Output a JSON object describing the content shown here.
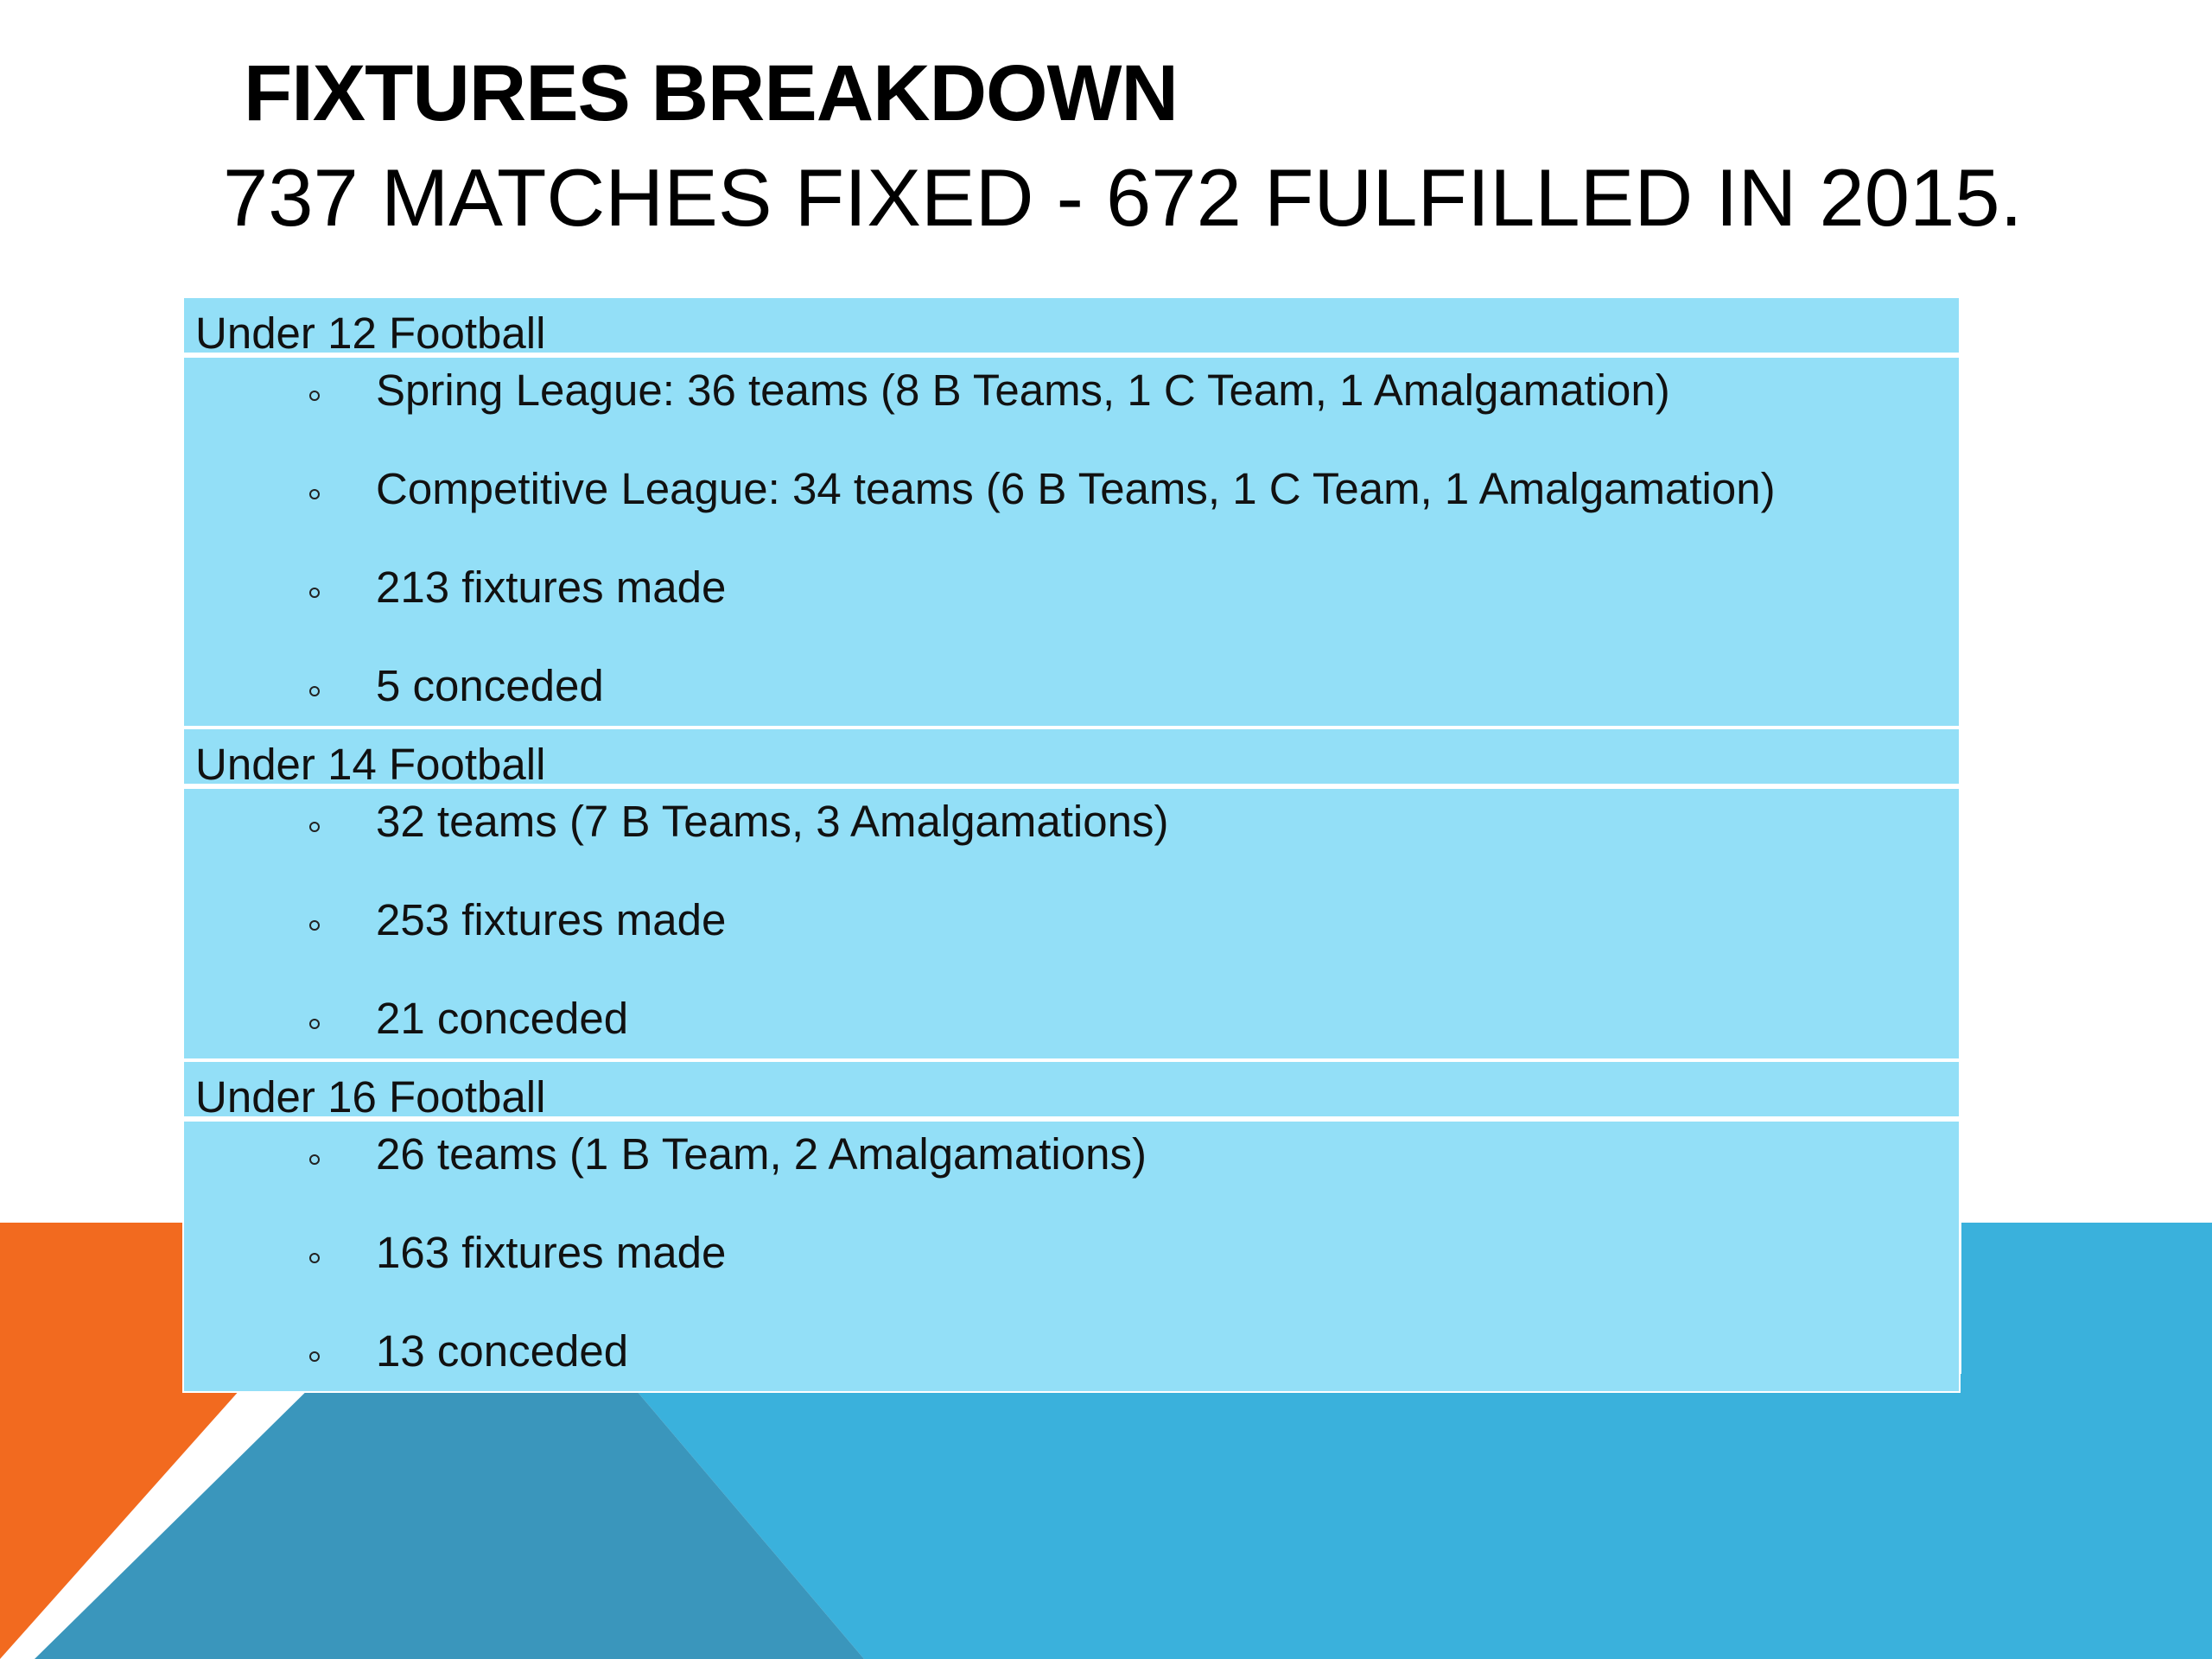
{
  "slide": {
    "title": "FIXTURES BREAKDOWN",
    "subtitle": "737 MATCHES FIXED - 672 FULFILLED IN 2015."
  },
  "colors": {
    "table_fill": "#93dff7",
    "orange": "#f26a1f",
    "blue": "#3ab1dc",
    "dark_blue": "#3a96bc"
  },
  "sections": [
    {
      "heading": "Under 12 Football",
      "items": [
        "Spring League: 36 teams (8 B Teams, 1 C Team, 1 Amalgamation)",
        "Competitive League: 34 teams (6 B Teams, 1 C Team, 1 Amalgamation)",
        "213 fixtures made",
        "5 conceded"
      ]
    },
    {
      "heading": "Under 14 Football",
      "items": [
        "32 teams (7 B Teams, 3 Amalgamations)",
        "253 fixtures made",
        "21 conceded"
      ]
    },
    {
      "heading": "Under 16 Football",
      "items": [
        "26 teams (1 B Team, 2 Amalgamations)",
        "163 fixtures made",
        "13 conceded"
      ]
    }
  ]
}
